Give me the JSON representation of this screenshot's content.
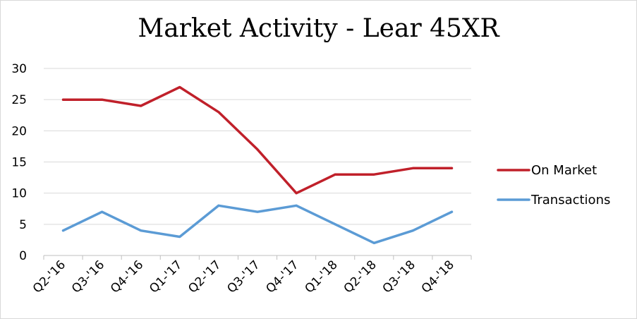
{
  "chart_data": {
    "type": "line",
    "title": "Market Activity - Lear 45XR",
    "xlabel": "",
    "ylabel": "",
    "categories": [
      "Q2-'16",
      "Q3-'16",
      "Q4-'16",
      "Q1-'17",
      "Q2-'17",
      "Q3-'17",
      "Q4-'17",
      "Q1-'18",
      "Q2-'18",
      "Q3-'18",
      "Q4-'18"
    ],
    "ylim": [
      0,
      30
    ],
    "yticks": [
      0,
      5,
      10,
      15,
      20,
      25,
      30
    ],
    "grid": true,
    "legend_position": "right",
    "series": [
      {
        "name": "On Market",
        "color": "#c0202a",
        "values": [
          25,
          25,
          24,
          27,
          23,
          17,
          10,
          13,
          13,
          14,
          14
        ]
      },
      {
        "name": "Transactions",
        "color": "#5b9bd5",
        "values": [
          4,
          7,
          4,
          3,
          8,
          7,
          8,
          5,
          2,
          4,
          7
        ]
      }
    ]
  }
}
